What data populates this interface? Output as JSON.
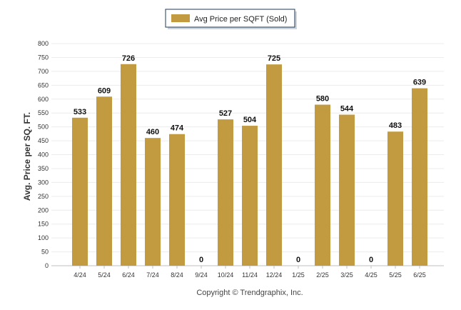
{
  "chart_data": {
    "type": "bar",
    "categories": [
      "4/24",
      "5/24",
      "6/24",
      "7/24",
      "8/24",
      "9/24",
      "10/24",
      "11/24",
      "12/24",
      "1/25",
      "2/25",
      "3/25",
      "4/25",
      "5/25",
      "6/25"
    ],
    "series": [
      {
        "name": "Avg Price per SQFT (Sold)",
        "values": [
          533,
          609,
          726,
          460,
          474,
          0,
          527,
          504,
          725,
          0,
          580,
          544,
          0,
          483,
          639
        ],
        "color": "#c29a40"
      }
    ],
    "ylabel": "Avg. Price per SQ. FT.",
    "xlabel": "",
    "ylim": [
      0,
      800
    ],
    "yticks": [
      0,
      50,
      100,
      150,
      200,
      250,
      300,
      350,
      400,
      450,
      500,
      550,
      600,
      650,
      700,
      750,
      800
    ],
    "grid": true,
    "legend": "top-center",
    "data_labels": true
  },
  "footer": {
    "credit": "Copyright © Trendgraphix, Inc."
  }
}
